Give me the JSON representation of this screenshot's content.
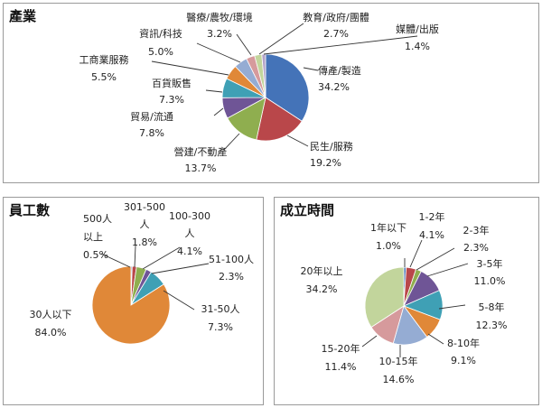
{
  "chart_data": [
    {
      "type": "pie",
      "title": "產業",
      "slices": [
        {
          "label": "傳產/製造",
          "value": 34.2,
          "display": "34.2%",
          "color": "#4473b8"
        },
        {
          "label": "民生/服務",
          "value": 19.2,
          "display": "19.2%",
          "color": "#b9474a"
        },
        {
          "label": "營建/不動產",
          "value": 13.7,
          "display": "13.7%",
          "color": "#8fae4f"
        },
        {
          "label": "貿易/流通",
          "value": 7.8,
          "display": "7.8%",
          "color": "#6f5596"
        },
        {
          "label": "百貨販售",
          "value": 7.3,
          "display": "7.3%",
          "color": "#3fa0b5"
        },
        {
          "label": "工商業服務",
          "value": 5.5,
          "display": "5.5%",
          "color": "#e08838"
        },
        {
          "label": "資訊/科技",
          "value": 5.0,
          "display": "5.0%",
          "color": "#95acd3"
        },
        {
          "label": "醫療/農牧/環境",
          "value": 3.2,
          "display": "3.2%",
          "color": "#d69a9c"
        },
        {
          "label": "教育/政府/團體",
          "value": 2.7,
          "display": "2.7%",
          "color": "#c2d59c"
        },
        {
          "label": "媒體/出版",
          "value": 1.4,
          "display": "1.4%",
          "color": "#b3a3c9"
        }
      ]
    },
    {
      "type": "pie",
      "title": "員工數",
      "slices": [
        {
          "label": "500人以上",
          "value": 0.5,
          "display": "0.5%",
          "color": "#4473b8"
        },
        {
          "label": "301-500人",
          "value": 1.8,
          "display": "1.8%",
          "color": "#b9474a"
        },
        {
          "label": "100-300人",
          "value": 4.1,
          "display": "4.1%",
          "color": "#8fae4f"
        },
        {
          "label": "51-100人",
          "value": 2.3,
          "display": "2.3%",
          "color": "#6f5596"
        },
        {
          "label": "31-50人",
          "value": 7.3,
          "display": "7.3%",
          "color": "#3fa0b5"
        },
        {
          "label": "30人以下",
          "value": 84.0,
          "display": "84.0%",
          "color": "#e08838"
        }
      ]
    },
    {
      "type": "pie",
      "title": "成立時間",
      "slices": [
        {
          "label": "1年以下",
          "value": 1.0,
          "display": "1.0%",
          "color": "#4473b8"
        },
        {
          "label": "1-2年",
          "value": 4.1,
          "display": "4.1%",
          "color": "#b9474a"
        },
        {
          "label": "2-3年",
          "value": 2.3,
          "display": "2.3%",
          "color": "#8fae4f"
        },
        {
          "label": "3-5年",
          "value": 11.0,
          "display": "11.0%",
          "color": "#6f5596"
        },
        {
          "label": "5-8年",
          "value": 12.3,
          "display": "12.3%",
          "color": "#3fa0b5"
        },
        {
          "label": "8-10年",
          "value": 9.1,
          "display": "9.1%",
          "color": "#e08838"
        },
        {
          "label": "10-15年",
          "value": 14.6,
          "display": "14.6%",
          "color": "#95acd3"
        },
        {
          "label": "15-20年",
          "value": 11.4,
          "display": "11.4%",
          "color": "#d69a9c"
        },
        {
          "label": "20年以上",
          "value": 34.2,
          "display": "34.2%",
          "color": "#c2d59c"
        }
      ]
    }
  ]
}
